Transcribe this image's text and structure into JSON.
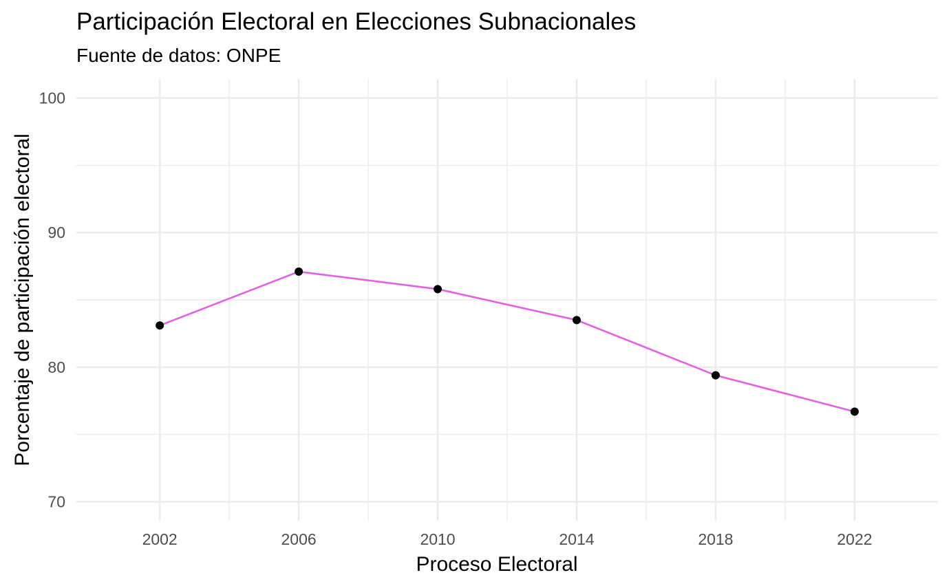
{
  "chart_data": {
    "type": "line",
    "title": "Participación Electoral en Elecciones Subnacionales",
    "subtitle": "Fuente de datos: ONPE",
    "xlabel": "Proceso Electoral",
    "ylabel": "Porcentaje de participación electoral",
    "x": [
      2002,
      2006,
      2010,
      2014,
      2018,
      2022
    ],
    "x_tick_labels": [
      "2002",
      "2006",
      "2010",
      "2014",
      "2018",
      "2022"
    ],
    "y_ticks": [
      70,
      80,
      90,
      100
    ],
    "y_tick_labels": [
      "70",
      "80",
      "90",
      "100"
    ],
    "xlim": [
      1999.6,
      2024.4
    ],
    "ylim": [
      68.6,
      101.4
    ],
    "series": [
      {
        "values": [
          83.1,
          87.1,
          85.8,
          83.5,
          79.4,
          76.7
        ],
        "line_color": "#e55ee8",
        "point_color": "#000000"
      }
    ],
    "grid": true,
    "legend": "none"
  }
}
